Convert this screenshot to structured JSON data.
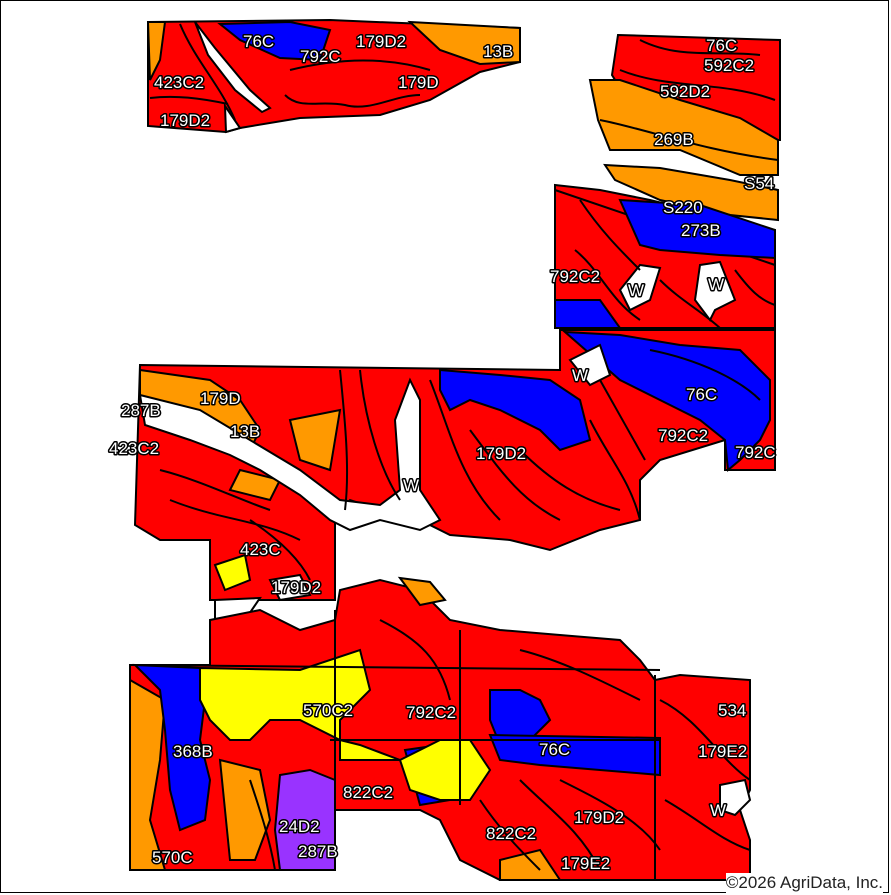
{
  "map": {
    "colors": {
      "red": "#ff0000",
      "orange": "#ff9900",
      "blue": "#0000ff",
      "yellow": "#ffff00",
      "purple": "#9933ff"
    },
    "labels": [
      {
        "text": "76C"
      },
      {
        "text": "792C"
      },
      {
        "text": "179D2"
      },
      {
        "text": "13B"
      },
      {
        "text": "423C2"
      },
      {
        "text": "179D"
      },
      {
        "text": "179D2"
      },
      {
        "text": "76C"
      },
      {
        "text": "592C2"
      },
      {
        "text": "592D2"
      },
      {
        "text": "269B"
      },
      {
        "text": "S54"
      },
      {
        "text": "S220"
      },
      {
        "text": "273B"
      },
      {
        "text": "792C2"
      },
      {
        "text": "W"
      },
      {
        "text": "W"
      },
      {
        "text": "W"
      },
      {
        "text": "76C"
      },
      {
        "text": "792C2"
      },
      {
        "text": "792C"
      },
      {
        "text": "287B"
      },
      {
        "text": "179D"
      },
      {
        "text": "13B"
      },
      {
        "text": "423C2"
      },
      {
        "text": "179D2"
      },
      {
        "text": "W"
      },
      {
        "text": "423C"
      },
      {
        "text": "179D2"
      },
      {
        "text": "570C2"
      },
      {
        "text": "792C2"
      },
      {
        "text": "534"
      },
      {
        "text": "368B"
      },
      {
        "text": "76C"
      },
      {
        "text": "179E2"
      },
      {
        "text": "822C2"
      },
      {
        "text": "W"
      },
      {
        "text": "179D2"
      },
      {
        "text": "24D2"
      },
      {
        "text": "822C2"
      },
      {
        "text": "287B"
      },
      {
        "text": "570C"
      },
      {
        "text": "179E2"
      }
    ]
  },
  "copyright": "©2026 AgriData, Inc."
}
